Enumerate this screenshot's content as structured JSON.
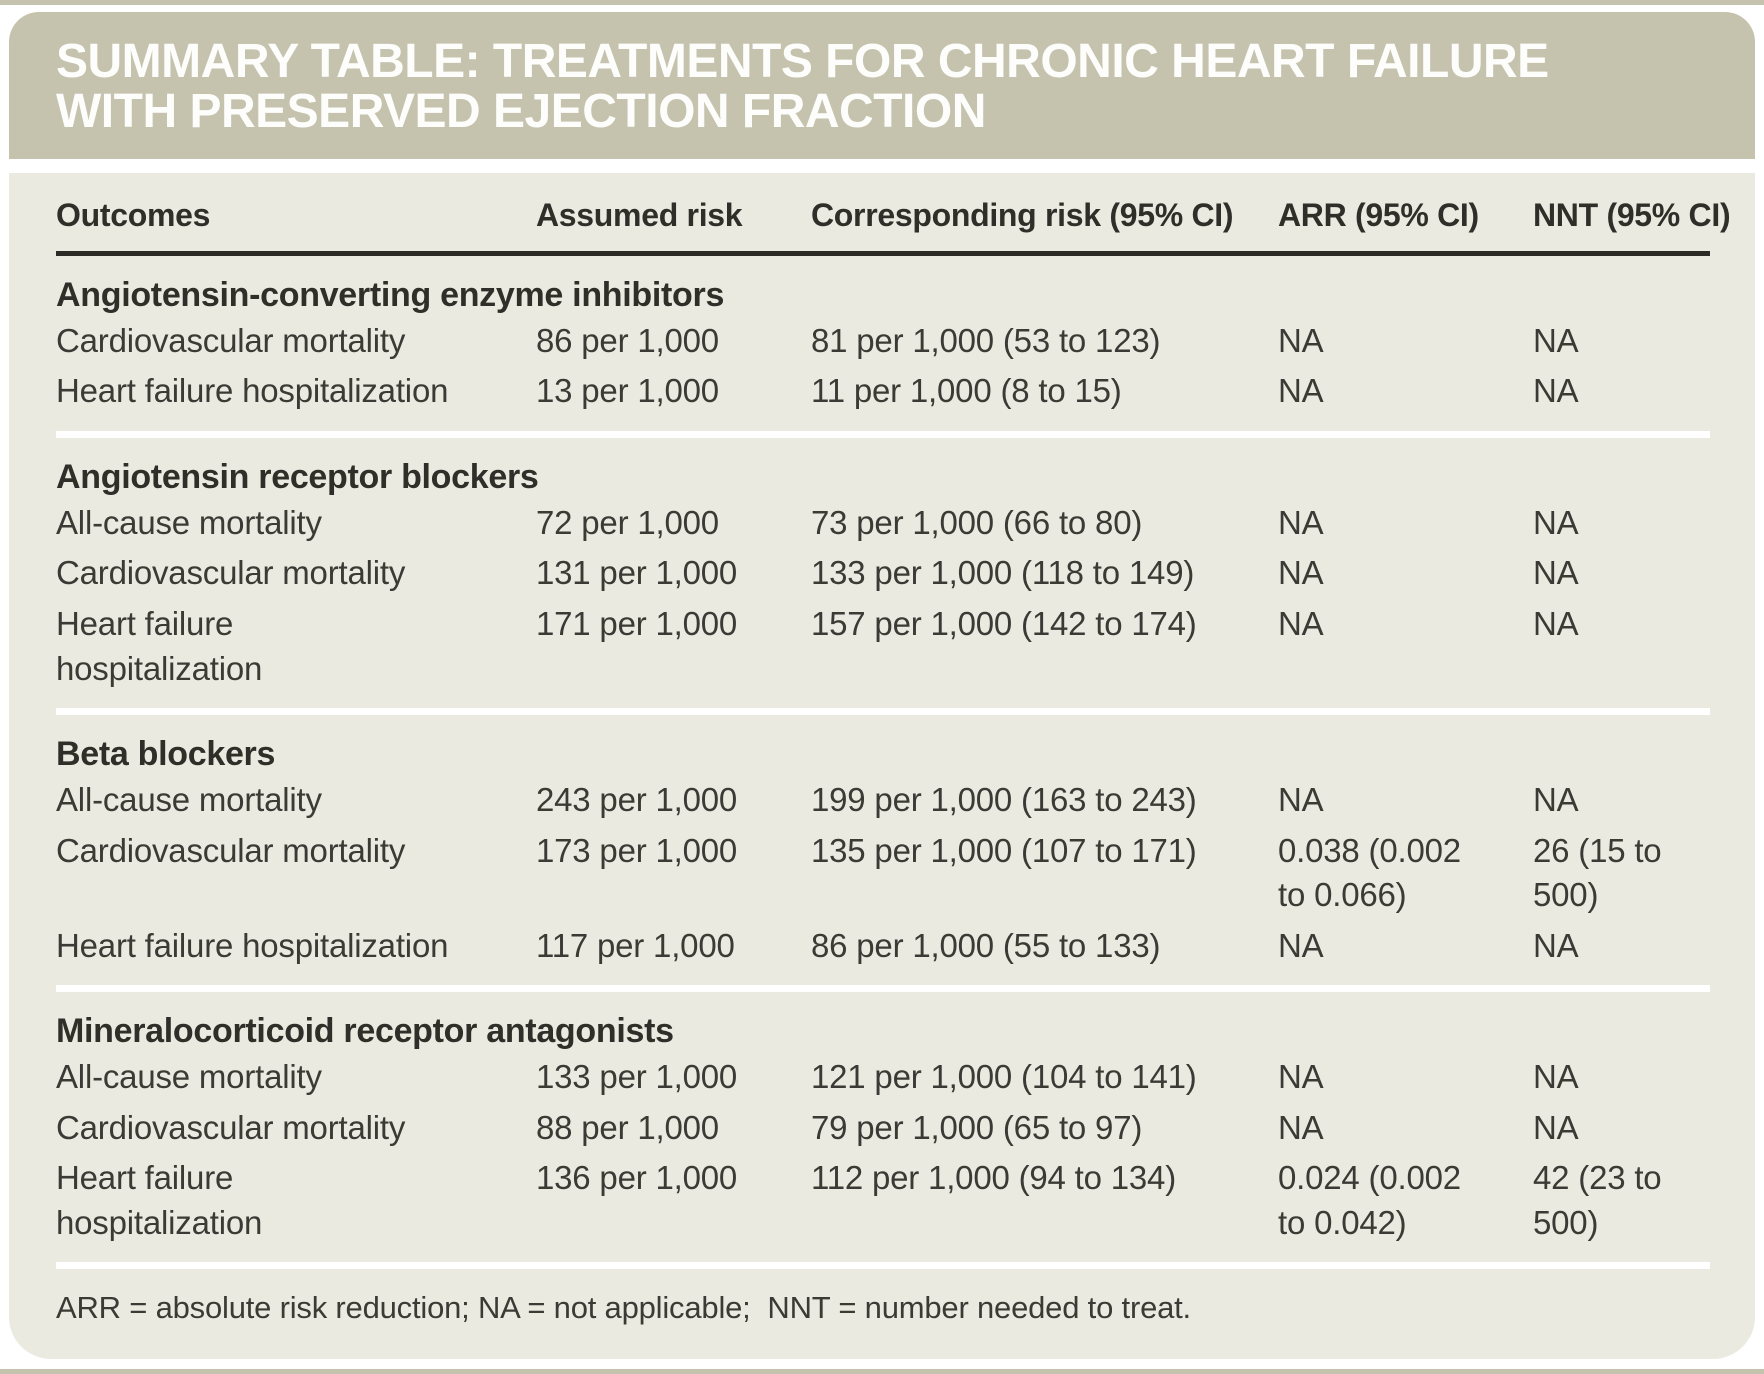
{
  "title": {
    "line1": "SUMMARY TABLE: TREATMENTS FOR CHRONIC HEART FAILURE",
    "line2": "WITH PRESERVED EJECTION FRACTION"
  },
  "columns": [
    "Outcomes",
    "Assumed risk",
    "Corresponding risk (95% CI)",
    "ARR (95% CI)",
    "NNT (95% CI)"
  ],
  "sections": [
    {
      "heading": "Angiotensin-converting enzyme inhibitors",
      "rows": [
        {
          "outcome": "Cardiovascular mortality",
          "assumed": "86 per 1,000",
          "corresponding": "81 per 1,000 (53 to 123)",
          "arr": "NA",
          "nnt": "NA"
        },
        {
          "outcome": "Heart failure hospitalization",
          "assumed": "13 per 1,000",
          "corresponding": "11 per 1,000 (8 to 15)",
          "arr": "NA",
          "nnt": "NA"
        }
      ]
    },
    {
      "heading": "Angiotensin receptor blockers",
      "rows": [
        {
          "outcome": "All-cause mortality",
          "assumed": "72 per 1,000",
          "corresponding": "73 per 1,000 (66 to 80)",
          "arr": "NA",
          "nnt": "NA"
        },
        {
          "outcome": "Cardiovascular mortality",
          "assumed": "131 per 1,000",
          "corresponding": "133 per 1,000 (118 to 149)",
          "arr": "NA",
          "nnt": "NA"
        },
        {
          "outcome": "Heart failure\nhospitalization",
          "assumed": "171 per 1,000",
          "corresponding": "157 per 1,000 (142 to 174)",
          "arr": "NA",
          "nnt": "NA"
        }
      ]
    },
    {
      "heading": "Beta blockers",
      "rows": [
        {
          "outcome": "All-cause mortality",
          "assumed": "243 per 1,000",
          "corresponding": "199 per 1,000 (163 to 243)",
          "arr": "NA",
          "nnt": "NA"
        },
        {
          "outcome": "Cardiovascular mortality",
          "assumed": "173 per 1,000",
          "corresponding": "135 per 1,000 (107 to 171)",
          "arr": "0.038 (0.002\nto 0.066)",
          "nnt": "26 (15 to\n500)"
        },
        {
          "outcome": "Heart failure hospitalization",
          "assumed": "117 per 1,000",
          "corresponding": "86 per 1,000 (55 to 133)",
          "arr": "NA",
          "nnt": "NA"
        }
      ]
    },
    {
      "heading": "Mineralocorticoid receptor antagonists",
      "rows": [
        {
          "outcome": "All-cause mortality",
          "assumed": "133 per 1,000",
          "corresponding": "121 per 1,000 (104 to 141)",
          "arr": "NA",
          "nnt": "NA"
        },
        {
          "outcome": "Cardiovascular mortality",
          "assumed": "88 per 1,000",
          "corresponding": "79 per 1,000 (65 to 97)",
          "arr": "NA",
          "nnt": "NA"
        },
        {
          "outcome": "Heart failure\nhospitalization",
          "assumed": "136 per 1,000",
          "corresponding": "112 per 1,000 (94 to 134)",
          "arr": "0.024 (0.002\nto 0.042)",
          "nnt": "42 (23 to\n500)"
        }
      ]
    }
  ],
  "footnote": "ARR = absolute risk reduction; NA = not applicable;  NNT = number needed to treat.",
  "colors": {
    "band": "#c5c2ae",
    "body_background": "#ebeae1",
    "title_text": "#fdfdfb",
    "text": "#3b3a34",
    "rule": "#2c2b26"
  }
}
